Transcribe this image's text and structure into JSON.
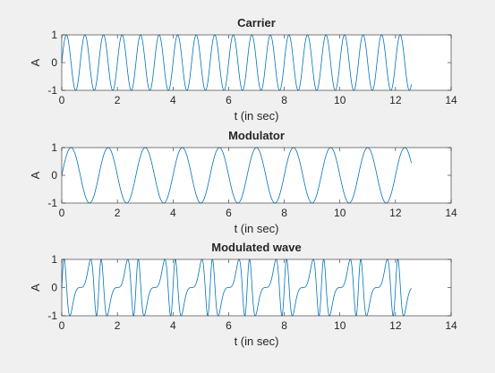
{
  "figure": {
    "background": "#f0f0f0",
    "line_color": "#0072bd"
  },
  "chart_data": [
    {
      "type": "line",
      "title": "Carrier",
      "xlabel": "t (in sec)",
      "ylabel": "A",
      "xlim": [
        0,
        14
      ],
      "ylim": [
        -1,
        1
      ],
      "xticks": [
        "0",
        "2",
        "4",
        "6",
        "8",
        "10",
        "12",
        "14"
      ],
      "yticks": [
        "-1",
        "0",
        "1"
      ],
      "grid": false,
      "series": [
        {
          "function": "sin",
          "amplitude": 1,
          "frequency_hz": 1.5,
          "phase_rad": 0,
          "t_start": 0,
          "t_end": 12.57
        }
      ]
    },
    {
      "type": "line",
      "title": "Modulator",
      "xlabel": "t (in sec)",
      "ylabel": "A",
      "xlim": [
        0,
        14
      ],
      "ylim": [
        -1,
        1
      ],
      "xticks": [
        "0",
        "2",
        "4",
        "6",
        "8",
        "10",
        "12",
        "14"
      ],
      "yticks": [
        "-1",
        "0",
        "1"
      ],
      "grid": false,
      "series": [
        {
          "function": "sin",
          "amplitude": 1,
          "frequency_hz": 0.75,
          "phase_rad": 0,
          "t_start": 0,
          "t_end": 12.57
        }
      ]
    },
    {
      "type": "line",
      "title": "Modulated wave",
      "xlabel": "t (in sec)",
      "ylabel": "A",
      "xlim": [
        0,
        14
      ],
      "ylim": [
        -1,
        1
      ],
      "xticks": [
        "0",
        "2",
        "4",
        "6",
        "8",
        "10",
        "12",
        "14"
      ],
      "yticks": [
        "-1",
        "0",
        "1"
      ],
      "grid": false,
      "series": [
        {
          "function": "fm",
          "amplitude": 1,
          "carrier_frequency_hz": 1.5,
          "modulator_frequency_hz": 0.75,
          "modulation_index": 2,
          "t_start": 0,
          "t_end": 12.57
        }
      ]
    }
  ]
}
